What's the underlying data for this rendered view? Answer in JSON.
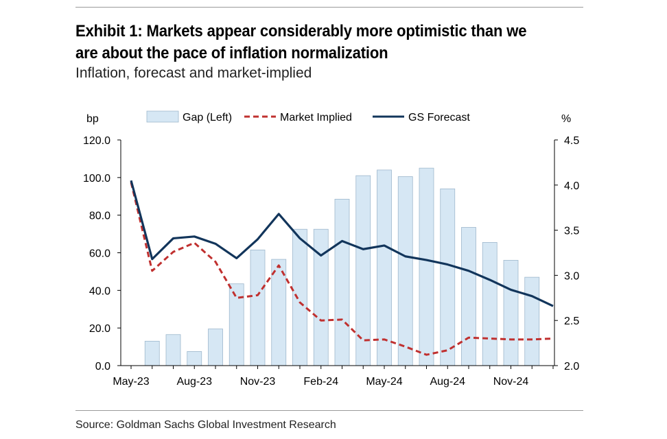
{
  "header": {
    "title": "Exhibit 1: Markets appear considerably more optimistic than we are about the pace of inflation normalization",
    "subtitle": "Inflation, forecast and market-implied"
  },
  "footer": {
    "source": "Source: Goldman Sachs Global Investment Research"
  },
  "chart_data": {
    "type": "bar",
    "categories": [
      "May-23",
      "Jun-23",
      "Jul-23",
      "Aug-23",
      "Sep-23",
      "Oct-23",
      "Nov-23",
      "Dec-23",
      "Jan-24",
      "Feb-24",
      "Mar-24",
      "Apr-24",
      "May-24",
      "Jun-24",
      "Jul-24",
      "Aug-24",
      "Sep-24",
      "Oct-24",
      "Nov-24",
      "Dec-24",
      "Jan-25"
    ],
    "x_tick_labels": [
      "May-23",
      "Aug-23",
      "Nov-23",
      "Feb-24",
      "May-24",
      "Aug-24",
      "Nov-24"
    ],
    "left_axis": {
      "label": "bp",
      "ylim": [
        0,
        120
      ],
      "ticks": [
        "0.0",
        "20.0",
        "40.0",
        "60.0",
        "80.0",
        "100.0",
        "120.0"
      ]
    },
    "right_axis": {
      "label": "%",
      "ylim": [
        2.0,
        4.5
      ],
      "ticks": [
        "2.0",
        "2.5",
        "3.0",
        "3.5",
        "4.0",
        "4.5"
      ]
    },
    "legend_position": "top",
    "grid": false,
    "series": [
      {
        "name": "Gap (Left)",
        "type": "bar",
        "axis": "left",
        "values": [
          null,
          13,
          16.5,
          7.5,
          19.5,
          43.5,
          61.5,
          56.5,
          72.5,
          72.5,
          88.5,
          101,
          104,
          100.5,
          105,
          94,
          73.5,
          65.5,
          56,
          47,
          null
        ],
        "color": "#d6e7f4",
        "edge": "#9db7cc"
      },
      {
        "name": "Market Implied",
        "type": "line",
        "axis": "right",
        "dashed": true,
        "values": [
          4.03,
          3.05,
          3.26,
          3.36,
          3.15,
          2.75,
          2.78,
          3.11,
          2.7,
          2.5,
          2.51,
          2.28,
          2.29,
          2.21,
          2.12,
          2.17,
          2.31,
          2.3,
          2.29,
          2.29,
          2.3
        ],
        "color": "#c0302f"
      },
      {
        "name": "GS Forecast",
        "type": "line",
        "axis": "right",
        "dashed": false,
        "values": [
          4.05,
          3.18,
          3.41,
          3.43,
          3.35,
          3.19,
          3.4,
          3.68,
          3.41,
          3.22,
          3.38,
          3.29,
          3.33,
          3.21,
          3.17,
          3.12,
          3.05,
          2.95,
          2.84,
          2.77,
          2.66
        ],
        "color": "#12355b"
      }
    ]
  }
}
